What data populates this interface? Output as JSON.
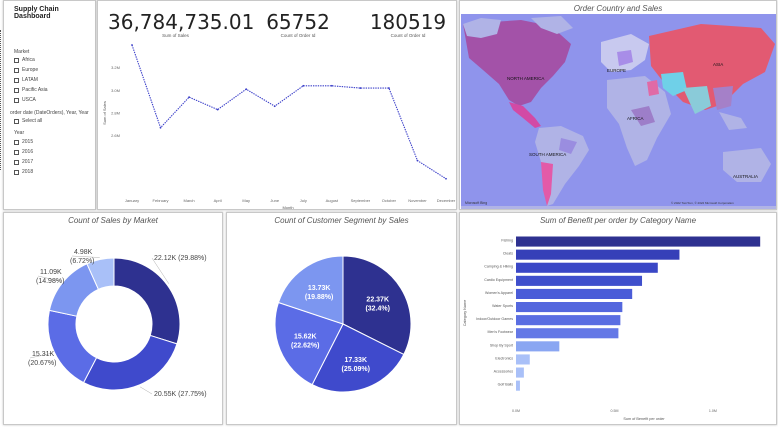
{
  "dashboard_title": "Supply Chain Dashboard",
  "slicers": {
    "market": {
      "header": "Market",
      "options": [
        "Africa",
        "Europe",
        "LATAM",
        "Pacific Asia",
        "USCA"
      ]
    },
    "order_date": {
      "header": "order date (DateOrders), Year, Year",
      "select_all": "Select all"
    },
    "year": {
      "header": "Year",
      "options": [
        "2015",
        "2016",
        "2017",
        "2018"
      ]
    }
  },
  "kpis": [
    {
      "value": "36,784,735.01",
      "label": "Sum of Sales"
    },
    {
      "value": "65752",
      "label": "Count of Order Id"
    },
    {
      "value": "180519",
      "label": "Count of Order Id"
    }
  ],
  "line_chart": {
    "chart_data": {
      "type": "line",
      "x": [
        "January",
        "February",
        "March",
        "April",
        "May",
        "June",
        "July",
        "August",
        "September",
        "October",
        "November",
        "December"
      ],
      "values": [
        3.4,
        2.67,
        2.94,
        2.83,
        3.01,
        2.86,
        3.04,
        3.04,
        3.02,
        3.02,
        2.38,
        2.22
      ],
      "xlabel": "Month",
      "ylabel": "Sum of Sales",
      "yticks": [
        "3.2M",
        "3.0M",
        "2.8M",
        "2.6M"
      ],
      "ylim": [
        2.2,
        3.4
      ]
    }
  },
  "map": {
    "title": "Order Country and Sales",
    "labels": [
      "NORTH AMERICA",
      "EUROPE",
      "ASIA",
      "AFRICA",
      "SOUTH AMERICA",
      "AUSTRALIA"
    ],
    "attribution": "Microsoft Bing",
    "copyright": "© 2022 TomTom, © 2022 Microsoft Corporation",
    "land_color": "#b0b3e6",
    "ocean_color": "#8f94ec"
  },
  "donut": {
    "title": "Count of Sales by Market",
    "chart_data": {
      "type": "pie",
      "hole": true,
      "slices": [
        {
          "value": "22.12K",
          "pct": "(29.88%)",
          "num": 22120,
          "color": "#2e3190"
        },
        {
          "value": "20.55K",
          "pct": "(27.75%)",
          "num": 20550,
          "color": "#3f4acc"
        },
        {
          "value": "15.31K",
          "pct": "(20.67%)",
          "num": 15310,
          "color": "#5b6ce6"
        },
        {
          "value": "11.09K",
          "pct": "(14.98%)",
          "num": 11090,
          "color": "#7c96f0"
        },
        {
          "value": "4.98K",
          "pct": "(6.72%)",
          "num": 4980,
          "color": "#a9c0f8"
        }
      ]
    }
  },
  "pie": {
    "title": "Count of Customer Segment by Sales",
    "chart_data": {
      "type": "pie",
      "slices": [
        {
          "value": "22.37K",
          "pct": "(32.4%)",
          "num": 22370,
          "color": "#2e3190"
        },
        {
          "value": "17.33K",
          "pct": "(25.09%)",
          "num": 17330,
          "color": "#3f4acc"
        },
        {
          "value": "15.62K",
          "pct": "(22.62%)",
          "num": 15620,
          "color": "#5b6ce6"
        },
        {
          "value": "13.73K",
          "pct": "(19.88%)",
          "num": 13730,
          "color": "#7c96f0"
        }
      ]
    }
  },
  "bar_chart": {
    "title": "Sum of Benefit per order by Category Name",
    "chart_data": {
      "type": "bar",
      "orientation": "horizontal",
      "categories": [
        "Fishing",
        "Cleats",
        "Camping & Hiking",
        "Cardio Equipment",
        "Women's Apparel",
        "Water Sports",
        "Indoor/Outdoor Games",
        "Men's Footwear",
        "Shop By Sport",
        "Electronics",
        "Accessories",
        "Golf Balls"
      ],
      "values": [
        1.24,
        0.83,
        0.72,
        0.64,
        0.59,
        0.54,
        0.53,
        0.52,
        0.22,
        0.07,
        0.04,
        0.02
      ],
      "xticks": [
        "0.0M",
        "0.5M",
        "1.0M"
      ],
      "xlim": [
        0,
        1.3
      ],
      "xlabel": "Sum of Benefit per order",
      "ylabel": "Category Name",
      "colors": [
        "#2e3190",
        "#3640b8",
        "#3a47c6",
        "#3f4fcc",
        "#4a5cd8",
        "#5467de",
        "#5a6ee2",
        "#6478e6",
        "#8aa6f2",
        "#a9c0f8",
        "#a9c0f8",
        "#a9c0f8"
      ]
    }
  }
}
